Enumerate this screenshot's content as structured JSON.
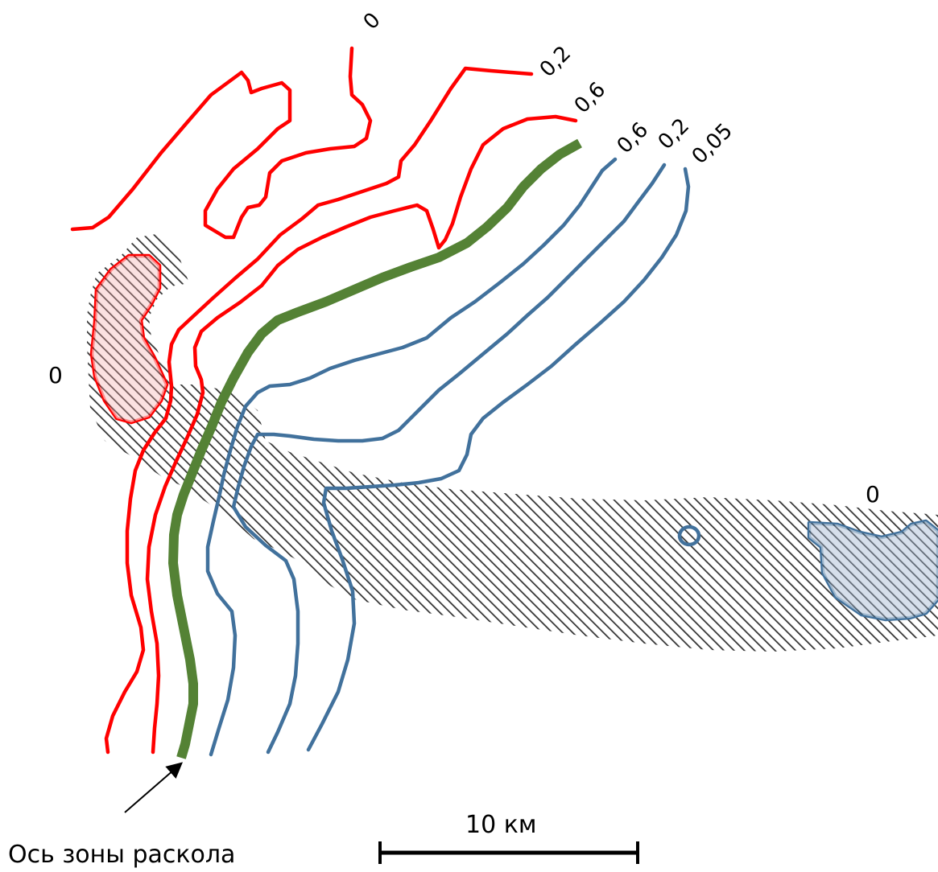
{
  "contour_labels": {
    "red_0": "0",
    "red_02": "0,2",
    "red_06": "0,6",
    "blue_06": "0,6",
    "blue_02": "0,2",
    "blue_005": "0,05"
  },
  "zero_labels": {
    "left": "0",
    "right": "0"
  },
  "rift_axis": {
    "caption": "Ось зоны раскола"
  },
  "scale_bar": {
    "label": "10 км"
  },
  "colors": {
    "red_contours": "#ff0000",
    "blue_contours": "#41719c",
    "rift_axis": "#548235",
    "red_anomaly_fill": "#f4a6a6",
    "blue_anomaly_fill": "#9fb4cf",
    "hatch": "#333333"
  }
}
